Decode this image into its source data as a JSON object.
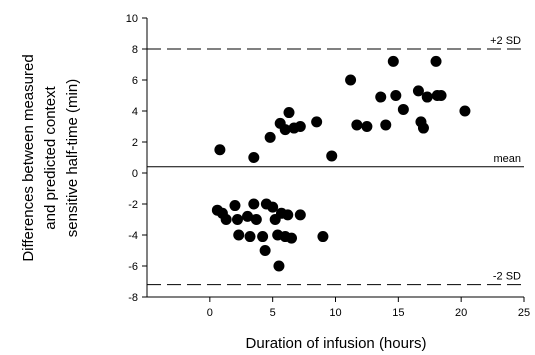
{
  "chart_data": {
    "type": "scatter",
    "title": "",
    "xlabel": "Duration of infusion (hours)",
    "ylabel_lines": [
      "Differences between measured",
      "and predicted context",
      "sensitive half-time (min)"
    ],
    "xlim": [
      -5,
      25
    ],
    "ylim": [
      -8,
      10
    ],
    "xticks": [
      0,
      5,
      10,
      15,
      20,
      25
    ],
    "yticks": [
      -8,
      -6,
      -4,
      -2,
      0,
      2,
      4,
      6,
      8,
      10
    ],
    "grid": false,
    "reference_lines": [
      {
        "label": "+2 SD",
        "y": 8.0,
        "style": "dashed"
      },
      {
        "label": "mean",
        "y": 0.4,
        "style": "solid"
      },
      {
        "label": "-2 SD",
        "y": -7.2,
        "style": "dashed"
      }
    ],
    "points": [
      {
        "x": 0.8,
        "y": 1.5
      },
      {
        "x": 3.5,
        "y": 1.0
      },
      {
        "x": 4.8,
        "y": 2.3
      },
      {
        "x": 5.6,
        "y": 3.2
      },
      {
        "x": 6.0,
        "y": 2.8
      },
      {
        "x": 6.3,
        "y": 3.9
      },
      {
        "x": 6.7,
        "y": 2.9
      },
      {
        "x": 7.2,
        "y": 3.0
      },
      {
        "x": 8.5,
        "y": 3.3
      },
      {
        "x": 9.7,
        "y": 1.1
      },
      {
        "x": 11.2,
        "y": 6.0
      },
      {
        "x": 11.7,
        "y": 3.1
      },
      {
        "x": 12.5,
        "y": 3.0
      },
      {
        "x": 13.6,
        "y": 4.9
      },
      {
        "x": 14.0,
        "y": 3.1
      },
      {
        "x": 14.6,
        "y": 7.2
      },
      {
        "x": 14.8,
        "y": 5.0
      },
      {
        "x": 15.4,
        "y": 4.1
      },
      {
        "x": 16.6,
        "y": 5.3
      },
      {
        "x": 16.8,
        "y": 3.3
      },
      {
        "x": 17.0,
        "y": 2.9
      },
      {
        "x": 17.3,
        "y": 4.9
      },
      {
        "x": 18.0,
        "y": 7.2
      },
      {
        "x": 18.1,
        "y": 5.0
      },
      {
        "x": 18.4,
        "y": 5.0
      },
      {
        "x": 20.3,
        "y": 4.0
      },
      {
        "x": 0.6,
        "y": -2.4
      },
      {
        "x": 1.0,
        "y": -2.6
      },
      {
        "x": 1.3,
        "y": -3.0
      },
      {
        "x": 2.0,
        "y": -2.1
      },
      {
        "x": 2.2,
        "y": -3.0
      },
      {
        "x": 2.3,
        "y": -4.0
      },
      {
        "x": 3.0,
        "y": -2.8
      },
      {
        "x": 3.2,
        "y": -4.1
      },
      {
        "x": 3.5,
        "y": -2.0
      },
      {
        "x": 3.7,
        "y": -3.0
      },
      {
        "x": 4.2,
        "y": -4.1
      },
      {
        "x": 4.4,
        "y": -5.0
      },
      {
        "x": 4.5,
        "y": -2.0
      },
      {
        "x": 5.0,
        "y": -2.2
      },
      {
        "x": 5.2,
        "y": -3.0
      },
      {
        "x": 5.4,
        "y": -4.0
      },
      {
        "x": 5.5,
        "y": -6.0
      },
      {
        "x": 5.7,
        "y": -2.6
      },
      {
        "x": 6.0,
        "y": -4.1
      },
      {
        "x": 6.2,
        "y": -2.7
      },
      {
        "x": 6.5,
        "y": -4.2
      },
      {
        "x": 7.2,
        "y": -2.7
      },
      {
        "x": 9.0,
        "y": -4.1
      }
    ]
  }
}
